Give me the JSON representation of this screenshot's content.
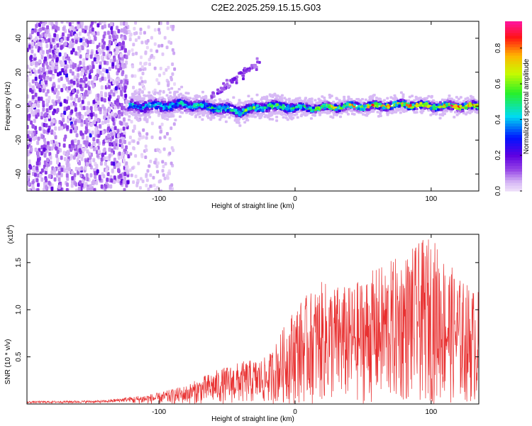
{
  "title": "C2E2.2025.259.15.15.G03",
  "chart_data": [
    {
      "type": "heatmap",
      "xlabel": "Height of straight line (km)",
      "ylabel": "Frequency (Hz)",
      "xlim": [
        -197,
        135
      ],
      "ylim": [
        -50,
        50
      ],
      "xticks": [
        -100,
        0,
        100
      ],
      "yticks": [
        -40,
        -20,
        0,
        20,
        40
      ],
      "xtick_labels": [
        "-100",
        "0",
        "100"
      ],
      "ytick_labels": [
        "-40",
        "-20",
        "0",
        "20",
        "40"
      ],
      "colorbar": {
        "label": "Normalized spectral amplitude",
        "range": [
          0,
          0.95
        ],
        "ticks": [
          0.0,
          0.2,
          0.4,
          0.6,
          0.8
        ],
        "tick_labels": [
          "0.0",
          "0.2",
          "0.4",
          "0.6",
          "0.8"
        ]
      },
      "ridge": {
        "description_points_x": [
          -120,
          -100,
          -80,
          -60,
          -40,
          -20,
          0,
          20,
          40,
          60,
          80,
          100,
          120,
          135
        ],
        "frequency_hz": [
          0,
          0,
          1,
          -1,
          -3,
          0,
          -1,
          -1,
          0,
          0,
          1,
          0,
          0,
          0
        ],
        "peak_amplitude": [
          0.45,
          0.45,
          0.5,
          0.55,
          0.6,
          0.6,
          0.55,
          0.7,
          0.75,
          0.8,
          0.85,
          0.85,
          0.9,
          0.9
        ]
      }
    },
    {
      "type": "line",
      "xlabel": "Height of straight line (km)",
      "ylabel": "SNR (10 * v/v)",
      "scale_label": "(x10",
      "scale_exponent": "4",
      "scale_suffix": ")",
      "xlim": [
        -197,
        135
      ],
      "ylim": [
        0,
        1.8
      ],
      "xticks": [
        -100,
        0,
        100
      ],
      "xtick_labels": [
        "-100",
        "0",
        "100"
      ],
      "yticks": [
        0.5,
        1.0,
        1.5
      ],
      "ytick_labels": [
        "0.5",
        "1.0",
        "1.5"
      ],
      "series": [
        {
          "name": "SNR",
          "color": "#e83030",
          "envelope_x": [
            -197,
            -140,
            -120,
            -100,
            -80,
            -60,
            -40,
            -20,
            0,
            20,
            40,
            60,
            80,
            100,
            120,
            135
          ],
          "envelope_max": [
            0.03,
            0.04,
            0.08,
            0.12,
            0.2,
            0.35,
            0.45,
            0.5,
            1.05,
            1.3,
            1.25,
            1.45,
            1.6,
            1.8,
            1.35,
            1.2
          ]
        }
      ]
    }
  ]
}
